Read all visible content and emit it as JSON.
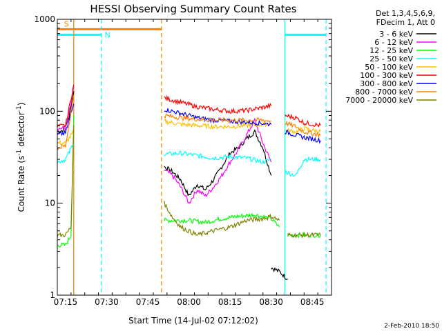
{
  "chart_data": {
    "type": "line",
    "title": "HESSI Observing Summary Count Rates",
    "xlabel": "Start Time (14-Jul-02 07:12:02)",
    "ylabel_main": "Count Rate (s",
    "ylabel_sup1": "-1",
    "ylabel_mid": " detector",
    "ylabel_sup2": "-1",
    "ylabel_end": ")",
    "y_scale": "log",
    "ylim": [
      1,
      1000
    ],
    "xlim": [
      "07:12",
      "08:52"
    ],
    "x_ticks": [
      "07:15",
      "07:30",
      "07:45",
      "08:00",
      "08:15",
      "08:30",
      "08:45"
    ],
    "y_ticks": [
      "1",
      "10",
      "100",
      "1000"
    ],
    "legend_header": [
      "Det 1,3,4,5,6,9,",
      "FDecim 1, Att 0"
    ],
    "legend_position": "right",
    "flag_labels": {
      "saa": "S",
      "night": "N"
    },
    "footer_date": "2-Feb-2010 18:50",
    "flags": [
      {
        "type": "saa",
        "label": "S",
        "color": "#ff8000",
        "start": "07:12",
        "end": "07:50",
        "y": 780
      },
      {
        "type": "night",
        "label": "N",
        "color": "#00ffff",
        "start": "07:12",
        "end": "07:28",
        "y": 680
      },
      {
        "type": "night",
        "label": "N",
        "color": "#00ffff",
        "start": "08:35",
        "end": "08:50",
        "y": 680
      }
    ],
    "markers": [
      {
        "time": "07:18",
        "color": "#00ffff",
        "style": "solid"
      },
      {
        "time": "07:18",
        "color": "#ff8000",
        "style": "solid"
      },
      {
        "time": "07:28",
        "color": "#00ffff",
        "style": "dashed"
      },
      {
        "time": "07:50",
        "color": "#ff8000",
        "style": "dashed"
      },
      {
        "time": "08:35",
        "color": "#00ffff",
        "style": "solid"
      },
      {
        "time": "08:50",
        "color": "#00ffff",
        "style": "dashed"
      }
    ],
    "series": [
      {
        "name": "3 - 6 keV",
        "color": "#000000",
        "segments": [
          [
            [
              "07:12",
              60
            ],
            [
              "07:14",
              62
            ],
            [
              "07:16",
              80
            ],
            [
              "07:18",
              165
            ]
          ],
          [
            [
              "07:51",
              25
            ],
            [
              "07:54",
              22
            ],
            [
              "07:57",
              18
            ],
            [
              "08:00",
              12
            ],
            [
              "08:03",
              16
            ],
            [
              "08:06",
              14
            ],
            [
              "08:09",
              18
            ],
            [
              "08:12",
              25
            ],
            [
              "08:15",
              35
            ],
            [
              "08:18",
              40
            ],
            [
              "08:21",
              50
            ],
            [
              "08:24",
              60
            ],
            [
              "08:27",
              40
            ],
            [
              "08:30",
              20
            ]
          ],
          [
            [
              "08:30",
              2
            ],
            [
              "08:33",
              1.8
            ],
            [
              "08:36",
              1.5
            ]
          ]
        ]
      },
      {
        "name": "6 - 12 keV",
        "color": "#ff00ff",
        "segments": [
          [
            [
              "07:12",
              65
            ],
            [
              "07:15",
              65
            ],
            [
              "07:17",
              120
            ],
            [
              "07:18",
              185
            ]
          ],
          [
            [
              "07:51",
              23
            ],
            [
              "07:54",
              20
            ],
            [
              "07:57",
              15
            ],
            [
              "08:00",
              10
            ],
            [
              "08:03",
              14
            ],
            [
              "08:06",
              12
            ],
            [
              "08:09",
              15
            ],
            [
              "08:12",
              20
            ],
            [
              "08:15",
              28
            ],
            [
              "08:18",
              38
            ],
            [
              "08:21",
              55
            ],
            [
              "08:24",
              80
            ],
            [
              "08:27",
              45
            ],
            [
              "08:30",
              28
            ]
          ]
        ]
      },
      {
        "name": "12 - 25 keV",
        "color": "#00ff00",
        "segments": [
          [
            [
              "07:12",
              3.5
            ],
            [
              "07:15",
              3.5
            ],
            [
              "07:17",
              4.5
            ],
            [
              "07:18",
              90
            ]
          ],
          [
            [
              "07:51",
              6.5
            ],
            [
              "07:54",
              6.5
            ],
            [
              "08:00",
              6.5
            ],
            [
              "08:06",
              6.2
            ],
            [
              "08:12",
              6.8
            ],
            [
              "08:18",
              7.2
            ],
            [
              "08:24",
              7.5
            ],
            [
              "08:30",
              6.8
            ],
            [
              "08:33",
              5.5
            ]
          ],
          [
            [
              "08:36",
              4.5
            ],
            [
              "08:42",
              4.5
            ],
            [
              "08:48",
              4.5
            ]
          ]
        ]
      },
      {
        "name": "25 - 50 keV",
        "color": "#00ffff",
        "segments": [
          [
            [
              "07:12",
              28
            ],
            [
              "07:15",
              30
            ],
            [
              "07:18",
              45
            ]
          ],
          [
            [
              "07:51",
              34
            ],
            [
              "07:57",
              35
            ],
            [
              "08:03",
              33
            ],
            [
              "08:09",
              31
            ],
            [
              "08:15",
              32
            ],
            [
              "08:21",
              31
            ],
            [
              "08:27",
              28
            ],
            [
              "08:30",
              30
            ]
          ],
          [
            [
              "08:35",
              22
            ],
            [
              "08:39",
              20
            ],
            [
              "08:42",
              30
            ],
            [
              "08:48",
              30
            ]
          ]
        ]
      },
      {
        "name": "50 - 100 keV",
        "color": "#ffc000",
        "segments": [
          [
            [
              "07:12",
              45
            ],
            [
              "07:15",
              45
            ],
            [
              "07:18",
              60
            ]
          ],
          [
            [
              "07:51",
              78
            ],
            [
              "07:57",
              72
            ],
            [
              "08:03",
              70
            ],
            [
              "08:09",
              68
            ],
            [
              "08:15",
              68
            ],
            [
              "08:21",
              70
            ],
            [
              "08:27",
              72
            ],
            [
              "08:30",
              75
            ]
          ],
          [
            [
              "08:35",
              62
            ],
            [
              "08:39",
              60
            ],
            [
              "08:42",
              65
            ],
            [
              "08:48",
              60
            ]
          ]
        ]
      },
      {
        "name": "100 - 300 keV",
        "color": "#ff0000",
        "segments": [
          [
            [
              "07:12",
              68
            ],
            [
              "07:15",
              70
            ],
            [
              "07:18",
              195
            ]
          ],
          [
            [
              "07:51",
              140
            ],
            [
              "07:57",
              125
            ],
            [
              "08:03",
              112
            ],
            [
              "08:09",
              105
            ],
            [
              "08:15",
              100
            ],
            [
              "08:21",
              102
            ],
            [
              "08:27",
              110
            ],
            [
              "08:30",
              115
            ]
          ],
          [
            [
              "08:35",
              90
            ],
            [
              "08:39",
              85
            ],
            [
              "08:42",
              75
            ],
            [
              "08:48",
              70
            ]
          ]
        ]
      },
      {
        "name": "300 - 800 keV",
        "color": "#0000ff",
        "segments": [
          [
            [
              "07:12",
              55
            ],
            [
              "07:15",
              58
            ],
            [
              "07:18",
              120
            ]
          ],
          [
            [
              "07:51",
              105
            ],
            [
              "07:57",
              95
            ],
            [
              "08:03",
              85
            ],
            [
              "08:09",
              80
            ],
            [
              "08:15",
              78
            ],
            [
              "08:21",
              76
            ],
            [
              "08:27",
              74
            ],
            [
              "08:30",
              72
            ]
          ],
          [
            [
              "08:35",
              60
            ],
            [
              "08:39",
              55
            ],
            [
              "08:42",
              52
            ],
            [
              "08:48",
              48
            ]
          ]
        ]
      },
      {
        "name": "800 - 7000 keV",
        "color": "#ff8000",
        "segments": [
          [
            [
              "07:12",
              40
            ],
            [
              "07:15",
              42
            ],
            [
              "07:18",
              150
            ]
          ],
          [
            [
              "07:51",
              90
            ],
            [
              "07:57",
              85
            ],
            [
              "08:03",
              82
            ],
            [
              "08:09",
              80
            ],
            [
              "08:15",
              80
            ],
            [
              "08:21",
              80
            ],
            [
              "08:27",
              80
            ],
            [
              "08:30",
              78
            ]
          ],
          [
            [
              "08:35",
              75
            ],
            [
              "08:39",
              68
            ],
            [
              "08:42",
              60
            ],
            [
              "08:48",
              55
            ]
          ]
        ]
      },
      {
        "name": "7000 - 20000 keV",
        "color": "#808000",
        "segments": [
          [
            [
              "07:12",
              4.5
            ],
            [
              "07:15",
              4.5
            ],
            [
              "07:17",
              5.5
            ],
            [
              "07:18",
              70
            ]
          ],
          [
            [
              "07:51",
              10
            ],
            [
              "07:54",
              7
            ],
            [
              "07:57",
              5.5
            ],
            [
              "08:03",
              4.5
            ],
            [
              "08:09",
              5
            ],
            [
              "08:15",
              5.5
            ],
            [
              "08:21",
              6.5
            ],
            [
              "08:27",
              6.8
            ],
            [
              "08:30",
              7.2
            ],
            [
              "08:33",
              6.5
            ]
          ],
          [
            [
              "08:36",
              4.5
            ],
            [
              "08:42",
              4.5
            ],
            [
              "08:48",
              4.5
            ]
          ]
        ]
      }
    ]
  }
}
